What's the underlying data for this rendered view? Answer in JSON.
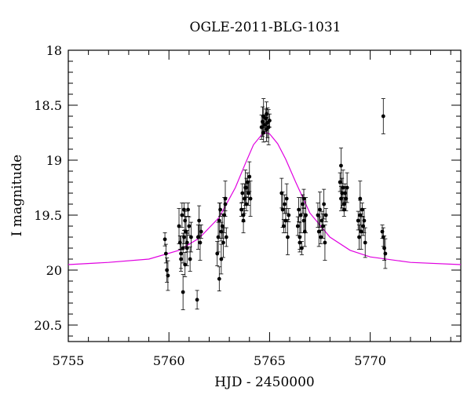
{
  "chart_data": {
    "type": "scatter",
    "title": "OGLE-2011-BLG-1031",
    "xlabel": "HJD - 2450000",
    "ylabel": "I magnitude",
    "xlim": [
      5755,
      5774.5
    ],
    "ylim": [
      20.65,
      18.0
    ],
    "y_inverted": true,
    "x_ticks": [
      "5755",
      "5760",
      "5765",
      "5770"
    ],
    "y_ticks": [
      "18",
      "18.5",
      "19",
      "19.5",
      "20",
      "20.5"
    ],
    "grid": false,
    "legend": "none",
    "colors": {
      "points": "#000000",
      "model": "#e000e0"
    },
    "model": {
      "name": "",
      "x": [
        5755.0,
        5757.0,
        5759.0,
        5760.5,
        5761.5,
        5762.5,
        5763.3,
        5763.8,
        5764.2,
        5764.6,
        5764.8,
        5765.0,
        5765.4,
        5765.8,
        5766.3,
        5767.0,
        5768.0,
        5769.0,
        5770.0,
        5772.0,
        5774.5
      ],
      "y": [
        19.95,
        19.93,
        19.9,
        19.82,
        19.71,
        19.52,
        19.25,
        19.03,
        18.86,
        18.77,
        18.75,
        18.76,
        18.85,
        18.99,
        19.2,
        19.48,
        19.7,
        19.82,
        19.88,
        19.93,
        19.95
      ]
    },
    "series": [
      {
        "name": "",
        "x": [
          5759.8,
          5759.85,
          5759.9,
          5759.95,
          5760.5,
          5760.55,
          5760.6,
          5760.65,
          5760.7,
          5760.7,
          5760.75,
          5760.8,
          5760.8,
          5760.85,
          5760.9,
          5760.95,
          5761.0,
          5761.05,
          5761.1,
          5760.6,
          5760.75,
          5760.9,
          5761.45,
          5761.5,
          5761.55,
          5761.6,
          5761.4,
          5762.4,
          5762.45,
          5762.5,
          5762.55,
          5762.6,
          5762.65,
          5762.7,
          5762.75,
          5762.8,
          5762.85,
          5762.5,
          5762.6,
          5762.8,
          5763.6,
          5763.65,
          5763.7,
          5763.75,
          5763.8,
          5763.85,
          5763.9,
          5763.95,
          5764.0,
          5764.05,
          5763.7,
          5763.85,
          5764.6,
          5764.65,
          5764.7,
          5764.75,
          5764.8,
          5764.85,
          5764.9,
          5764.95,
          5765.0,
          5764.7,
          5764.85,
          5765.6,
          5765.65,
          5765.7,
          5765.75,
          5765.8,
          5765.85,
          5765.9,
          5765.95,
          5766.4,
          5766.45,
          5766.5,
          5766.55,
          5766.6,
          5766.65,
          5766.7,
          5766.75,
          5766.8,
          5766.5,
          5766.7,
          5767.4,
          5767.45,
          5767.5,
          5767.55,
          5767.6,
          5767.65,
          5767.7,
          5767.75,
          5767.8,
          5768.5,
          5768.55,
          5768.6,
          5768.65,
          5768.7,
          5768.75,
          5768.8,
          5768.85,
          5768.55,
          5768.7,
          5769.4,
          5769.45,
          5769.5,
          5769.55,
          5769.6,
          5769.65,
          5769.7,
          5769.75,
          5769.5,
          5770.6,
          5770.65,
          5770.7,
          5770.75,
          5770.65
        ],
        "y": [
          19.72,
          19.85,
          20.0,
          20.05,
          19.6,
          19.75,
          19.9,
          19.5,
          19.8,
          20.2,
          19.7,
          19.55,
          19.95,
          19.65,
          19.8,
          19.45,
          19.6,
          19.9,
          19.7,
          19.85,
          19.45,
          19.75,
          19.7,
          19.55,
          19.75,
          19.65,
          20.27,
          19.85,
          19.7,
          19.55,
          19.45,
          19.65,
          19.6,
          19.75,
          19.5,
          19.4,
          19.7,
          20.08,
          19.9,
          19.35,
          19.45,
          19.3,
          19.55,
          19.35,
          19.25,
          19.4,
          19.2,
          19.3,
          19.15,
          19.35,
          19.5,
          19.25,
          18.7,
          18.65,
          18.6,
          18.68,
          18.62,
          18.58,
          18.66,
          18.7,
          18.64,
          18.75,
          18.72,
          19.3,
          19.45,
          19.6,
          19.4,
          19.55,
          19.35,
          19.7,
          19.5,
          19.6,
          19.45,
          19.7,
          19.5,
          19.8,
          19.4,
          19.55,
          19.65,
          19.5,
          19.75,
          19.35,
          19.5,
          19.65,
          19.45,
          19.7,
          19.55,
          19.6,
          19.4,
          19.75,
          19.5,
          19.2,
          19.35,
          19.3,
          19.25,
          19.4,
          19.3,
          19.35,
          19.25,
          19.05,
          19.45,
          19.55,
          19.7,
          19.5,
          19.65,
          19.45,
          19.6,
          19.55,
          19.75,
          19.35,
          19.65,
          19.7,
          19.8,
          19.85,
          18.6
        ]
      }
    ]
  }
}
